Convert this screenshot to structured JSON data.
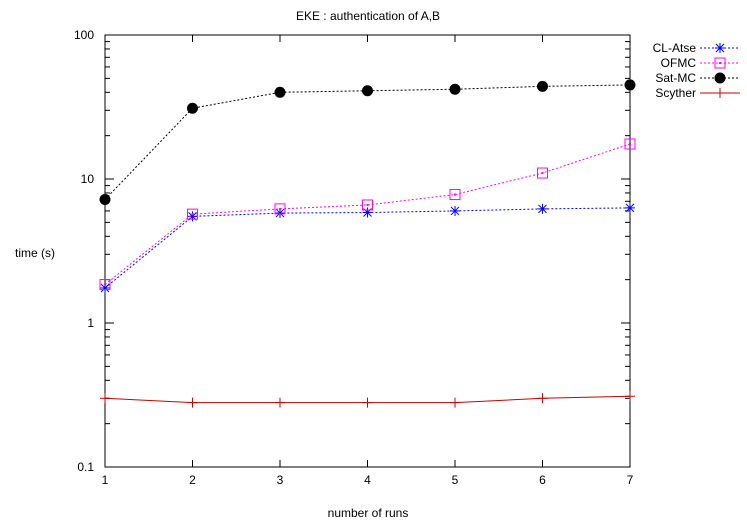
{
  "chart_data": {
    "type": "line",
    "title": "EKE : authentication of A,B",
    "xlabel": "number of runs",
    "ylabel": "time (s)",
    "y_scale": "log",
    "xlim": [
      1,
      7
    ],
    "ylim": [
      0.1,
      100
    ],
    "x_ticks": [
      1,
      2,
      3,
      4,
      5,
      6,
      7
    ],
    "x_tick_labels": [
      "1",
      "2",
      "3",
      "4",
      "5",
      "6",
      "7"
    ],
    "y_ticks": [
      0.1,
      1,
      10,
      100
    ],
    "y_tick_labels": [
      "0.1",
      "1",
      "10",
      "100"
    ],
    "grid": false,
    "legend_position": "top-right",
    "x": [
      1,
      2,
      3,
      4,
      5,
      6,
      7
    ],
    "series": [
      {
        "name": "CL-Atse",
        "values": [
          1.75,
          5.5,
          5.8,
          5.85,
          6.0,
          6.2,
          6.3
        ],
        "color": "#0000ff",
        "marker": "asterisk",
        "dash": "dotted"
      },
      {
        "name": "OFMC",
        "values": [
          1.85,
          5.7,
          6.2,
          6.6,
          7.8,
          11,
          17.5
        ],
        "color": "#ff00ff",
        "marker": "square",
        "dash": "dotted"
      },
      {
        "name": "Sat-MC",
        "values": [
          7.2,
          31,
          40,
          41,
          42,
          44,
          45
        ],
        "color": "#000000",
        "marker": "filled-circle",
        "dash": "dotted"
      },
      {
        "name": "Scyther",
        "values": [
          0.3,
          0.28,
          0.28,
          0.28,
          0.28,
          0.3,
          0.31
        ],
        "color": "#cc0000",
        "marker": "plus",
        "dash": "solid"
      }
    ]
  }
}
